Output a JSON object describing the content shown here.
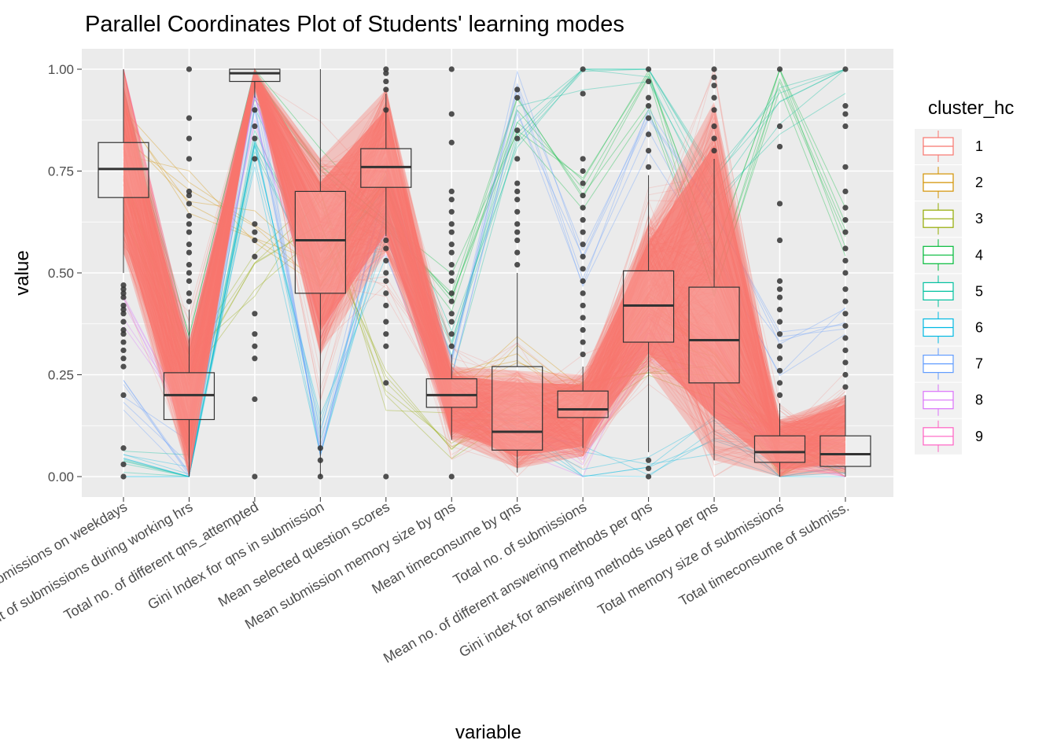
{
  "chart_data": {
    "type": "parallel-coordinates",
    "title": "Parallel Coordinates Plot of Students' learning modes",
    "xlabel": "variable",
    "ylabel": "value",
    "ylim": [
      0,
      1
    ],
    "yticks": [
      "0.00",
      "0.25",
      "0.50",
      "0.75",
      "1.00"
    ],
    "ytick_values": [
      0,
      0.25,
      0.5,
      0.75,
      1
    ],
    "grid": true,
    "legend_title": "cluster_hc",
    "legend_position": "right",
    "clusters": [
      {
        "name": "1",
        "color": "#F8766D"
      },
      {
        "name": "2",
        "color": "#D39200"
      },
      {
        "name": "3",
        "color": "#93AA00"
      },
      {
        "name": "4",
        "color": "#00BA38"
      },
      {
        "name": "5",
        "color": "#00C19F"
      },
      {
        "name": "6",
        "color": "#00B9E3"
      },
      {
        "name": "7",
        "color": "#619CFF"
      },
      {
        "name": "8",
        "color": "#DB72FB"
      },
      {
        "name": "9",
        "color": "#FF61C3"
      }
    ],
    "variables": [
      "Percent of submissions on weekdays",
      "Percent of submissions during working hrs",
      "Total no. of different qns_attempted",
      "Gini Index for qns in submission",
      "Mean selected question scores",
      "Mean submission memory size by qns",
      "Mean timeconsume by qns",
      "Total no. of submissions",
      "Mean no. of different answering methods per qns",
      "Gini index for answering methods used per qns",
      "Total memory size of submissions",
      "Total timeconsume of submiss."
    ],
    "boxplots": [
      {
        "variable": "Percent of submissions on weekdays",
        "q1": 0.685,
        "median": 0.755,
        "q3": 0.82,
        "whisker_low": 0.5,
        "whisker_high": 1.0
      },
      {
        "variable": "Percent of submissions during working hrs",
        "q1": 0.14,
        "median": 0.2,
        "q3": 0.255,
        "whisker_low": 0.0,
        "whisker_high": 0.41
      },
      {
        "variable": "Total no. of different qns_attempted",
        "q1": 0.97,
        "median": 0.99,
        "q3": 1.0,
        "whisker_low": 0.93,
        "whisker_high": 1.0
      },
      {
        "variable": "Gini Index for qns in submission",
        "q1": 0.45,
        "median": 0.58,
        "q3": 0.7,
        "whisker_low": 0.0,
        "whisker_high": 1.0
      },
      {
        "variable": "Mean selected question scores",
        "q1": 0.71,
        "median": 0.76,
        "q3": 0.805,
        "whisker_low": 0.59,
        "whisker_high": 0.94
      },
      {
        "variable": "Mean submission memory size by qns",
        "q1": 0.17,
        "median": 0.2,
        "q3": 0.24,
        "whisker_low": 0.09,
        "whisker_high": 0.3
      },
      {
        "variable": "Mean timeconsume by qns",
        "q1": 0.065,
        "median": 0.11,
        "q3": 0.27,
        "whisker_low": 0.01,
        "whisker_high": 0.5
      },
      {
        "variable": "Total no. of submissions",
        "q1": 0.145,
        "median": 0.165,
        "q3": 0.21,
        "whisker_low": 0.07,
        "whisker_high": 0.27
      },
      {
        "variable": "Mean no. of different answering methods per qns",
        "q1": 0.33,
        "median": 0.42,
        "q3": 0.505,
        "whisker_low": 0.06,
        "whisker_high": 0.74
      },
      {
        "variable": "Gini index for answering methods used per qns",
        "q1": 0.23,
        "median": 0.335,
        "q3": 0.465,
        "whisker_low": 0.04,
        "whisker_high": 0.78
      },
      {
        "variable": "Total memory size of submissions",
        "q1": 0.035,
        "median": 0.06,
        "q3": 0.1,
        "whisker_low": 0.0,
        "whisker_high": 0.18
      },
      {
        "variable": "Total timeconsume of submiss.",
        "q1": 0.025,
        "median": 0.055,
        "q3": 0.1,
        "whisker_low": 0.0,
        "whisker_high": 0.2
      }
    ],
    "cluster1_envelope": {
      "upper": [
        1.0,
        0.33,
        1.0,
        0.78,
        0.95,
        0.27,
        0.26,
        0.25,
        0.62,
        0.92,
        0.14,
        0.2
      ],
      "lower": [
        0.55,
        0.0,
        0.96,
        0.3,
        0.55,
        0.09,
        0.02,
        0.05,
        0.26,
        0.04,
        0.0,
        0.01
      ]
    },
    "other_clusters_profiles": [
      {
        "cluster": "2",
        "values": [
          0.85,
          0.7,
          0.6,
          0.5,
          0.7,
          0.2,
          0.3,
          0.2,
          0.4,
          0.3,
          0.1,
          0.1
        ]
      },
      {
        "cluster": "3",
        "values": [
          0.7,
          0.25,
          0.5,
          0.65,
          0.2,
          0.1,
          0.2,
          0.18,
          0.3,
          0.25,
          0.05,
          0.04
        ]
      },
      {
        "cluster": "4",
        "values": [
          0.9,
          0.3,
          0.95,
          0.75,
          0.6,
          0.45,
          0.9,
          0.7,
          0.95,
          0.5,
          1.0,
          0.6
        ]
      },
      {
        "cluster": "5",
        "values": [
          0.05,
          0.0,
          0.85,
          0.5,
          0.7,
          0.3,
          0.85,
          1.0,
          0.98,
          0.7,
          0.9,
          1.0
        ]
      },
      {
        "cluster": "6",
        "values": [
          0.0,
          0.0,
          0.8,
          0.1,
          0.6,
          0.2,
          0.1,
          0.05,
          0.0,
          0.1,
          0.0,
          0.0
        ]
      },
      {
        "cluster": "7",
        "values": [
          0.2,
          0.05,
          0.95,
          0.05,
          0.7,
          0.3,
          0.95,
          0.5,
          0.85,
          0.6,
          0.3,
          0.4
        ]
      },
      {
        "cluster": "8",
        "values": [
          0.4,
          0.1,
          0.9,
          0.4,
          0.6,
          0.15,
          0.1,
          0.05,
          0.35,
          0.2,
          0.05,
          0.05
        ]
      },
      {
        "cluster": "9",
        "values": [
          1.0,
          0.3,
          1.0,
          0.6,
          0.75,
          0.2,
          0.15,
          0.1,
          0.4,
          0.3,
          0.05,
          0.03
        ]
      }
    ],
    "outliers": [
      {
        "variable": "Percent of submissions on weekdays",
        "values": [
          0.0,
          0.03,
          0.07,
          0.2,
          0.27,
          0.29,
          0.31,
          0.33,
          0.35,
          0.36,
          0.38,
          0.4,
          0.41,
          0.42,
          0.44,
          0.45,
          0.46,
          0.47
        ]
      },
      {
        "variable": "Percent of submissions during working hrs",
        "values": [
          0.43,
          0.45,
          0.48,
          0.5,
          0.52,
          0.55,
          0.57,
          0.6,
          0.62,
          0.64,
          0.67,
          0.69,
          0.7,
          0.78,
          0.83,
          0.88,
          1.0
        ]
      },
      {
        "variable": "Total no. of different qns_attempted",
        "values": [
          0.0,
          0.19,
          0.29,
          0.32,
          0.35,
          0.4,
          0.54,
          0.58,
          0.6,
          0.62,
          0.78,
          0.83,
          0.86,
          0.9
        ]
      },
      {
        "variable": "Gini Index for qns in submission",
        "values": [
          0.0,
          0.04,
          0.07
        ]
      },
      {
        "variable": "Mean selected question scores",
        "values": [
          0.0,
          0.23,
          0.32,
          0.35,
          0.38,
          0.42,
          0.45,
          0.48,
          0.5,
          0.53,
          0.56,
          0.58,
          0.9,
          0.95,
          0.97,
          0.99,
          1.0
        ]
      },
      {
        "variable": "Mean submission memory size by qns",
        "values": [
          0.0,
          0.32,
          0.35,
          0.38,
          0.4,
          0.43,
          0.45,
          0.48,
          0.5,
          0.52,
          0.55,
          0.57,
          0.6,
          0.62,
          0.65,
          0.68,
          0.7,
          0.82,
          0.89,
          1.0
        ]
      },
      {
        "variable": "Mean timeconsume by qns",
        "values": [
          0.52,
          0.55,
          0.58,
          0.6,
          0.62,
          0.65,
          0.68,
          0.7,
          0.72,
          0.78,
          0.83,
          0.85,
          0.93,
          0.95
        ]
      },
      {
        "variable": "Total no. of submissions",
        "values": [
          0.3,
          0.33,
          0.36,
          0.39,
          0.42,
          0.45,
          0.48,
          0.51,
          0.54,
          0.57,
          0.6,
          0.63,
          0.66,
          0.69,
          0.72,
          0.75,
          0.78,
          0.94,
          1.0
        ]
      },
      {
        "variable": "Mean no. of different answering methods per qns",
        "values": [
          0.0,
          0.02,
          0.04,
          0.76,
          0.8,
          0.84,
          0.88,
          0.91,
          0.93,
          0.97,
          1.0
        ]
      },
      {
        "variable": "Gini index for answering methods used per qns",
        "values": [
          0.8,
          0.83,
          0.86,
          0.9,
          0.93,
          0.96,
          0.98,
          1.0
        ]
      },
      {
        "variable": "Total memory size of submissions",
        "values": [
          0.2,
          0.23,
          0.26,
          0.29,
          0.32,
          0.35,
          0.38,
          0.41,
          0.44,
          0.46,
          0.48,
          0.58,
          0.67,
          0.81,
          0.86,
          1.0
        ]
      },
      {
        "variable": "Total timeconsume of submiss.",
        "values": [
          0.22,
          0.25,
          0.28,
          0.31,
          0.34,
          0.37,
          0.4,
          0.43,
          0.46,
          0.5,
          0.53,
          0.56,
          0.6,
          0.63,
          0.66,
          0.7,
          0.76,
          0.86,
          0.89,
          0.91,
          1.0
        ]
      }
    ]
  }
}
